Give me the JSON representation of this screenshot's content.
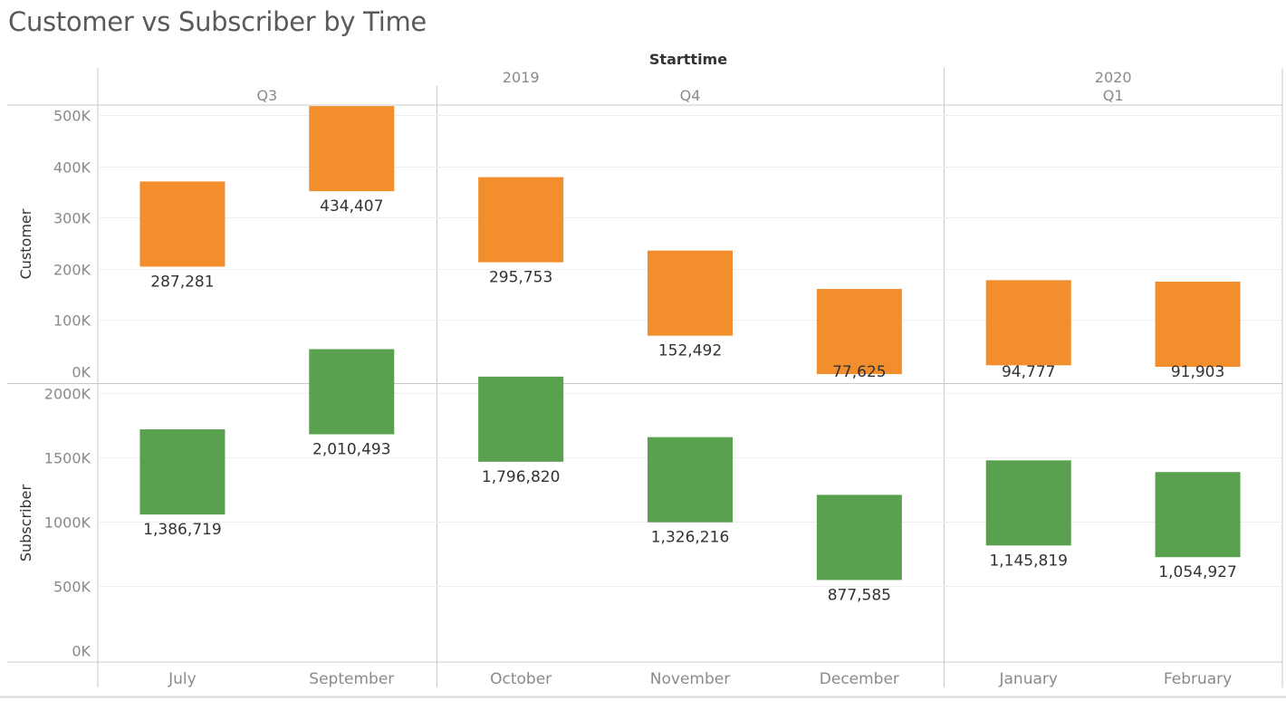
{
  "title": "Customer vs Subscriber by Time",
  "chart_data": {
    "type": "bar",
    "column_header": "Starttime",
    "years": [
      {
        "label": "2019",
        "quarters": [
          {
            "label": "Q3",
            "months": [
              "July",
              "September"
            ]
          },
          {
            "label": "Q4",
            "months": [
              "October",
              "November",
              "December"
            ]
          }
        ]
      },
      {
        "label": "2020",
        "quarters": [
          {
            "label": "Q1",
            "months": [
              "January",
              "February"
            ]
          }
        ]
      }
    ],
    "categories": [
      "July",
      "September",
      "October",
      "November",
      "December",
      "January",
      "February"
    ],
    "series": [
      {
        "name": "Customer",
        "color": "#f28e2b",
        "values": [
          287281,
          434407,
          295753,
          152492,
          77625,
          94777,
          91903
        ],
        "labels": [
          "287,281",
          "434,407",
          "295,753",
          "152,492",
          "77,625",
          "94,777",
          "91,903"
        ],
        "ylim": [
          0,
          520000
        ],
        "ticks": [
          0,
          100000,
          200000,
          300000,
          400000,
          500000
        ],
        "tick_labels": [
          "0K",
          "100K",
          "200K",
          "300K",
          "400K",
          "500K"
        ]
      },
      {
        "name": "Subscriber",
        "color": "#59a14f",
        "values": [
          1386719,
          2010493,
          1796820,
          1326216,
          877585,
          1145819,
          1054927
        ],
        "labels": [
          "1,386,719",
          "2,010,493",
          "1,796,820",
          "1,326,216",
          "877,585",
          "1,145,819",
          "1,054,927"
        ],
        "ylim": [
          0,
          2375000
        ],
        "ticks": [
          0,
          500000,
          1000000,
          1500000,
          2000000
        ],
        "tick_labels": [
          "0K",
          "500K",
          "1000K",
          "1500K",
          "2000K"
        ]
      }
    ],
    "grid": true
  }
}
